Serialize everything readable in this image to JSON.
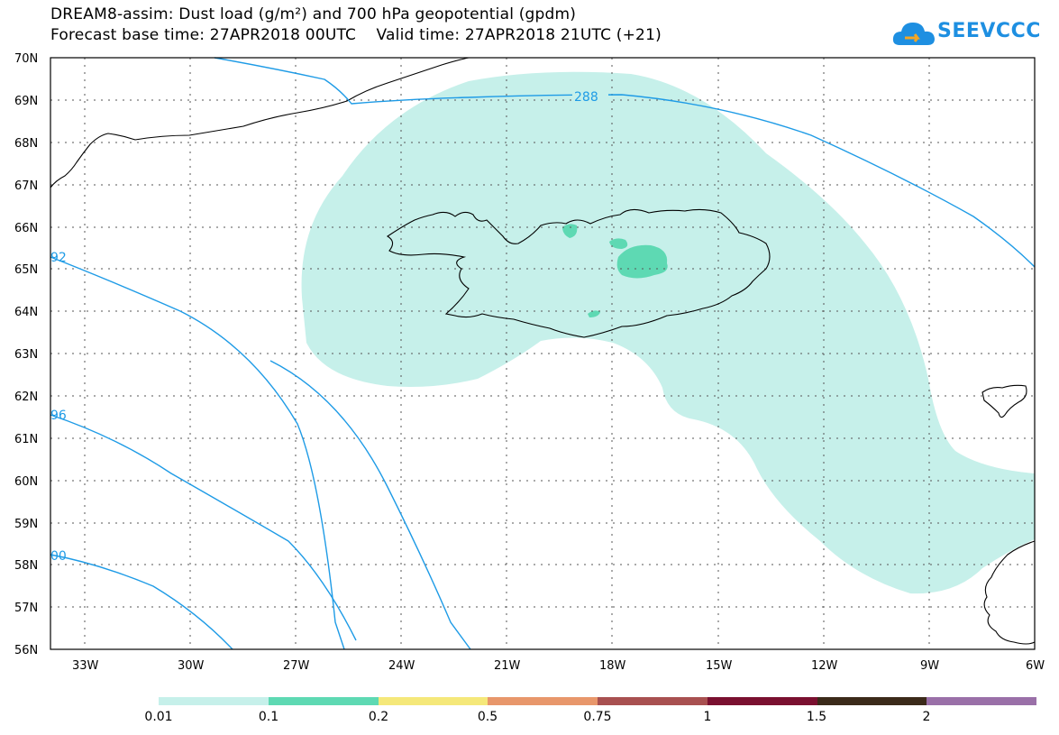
{
  "title_line1": "DREAM8-assim: Dust load (g/m²) and 700 hPa geopotential (gpdm)",
  "title_line2": "Forecast base time: 27APR2018 00UTC    Valid time: 27APR2018 21UTC (+21)",
  "logo_text": "SEEVCCC",
  "map": {
    "lon_labels": [
      "33W",
      "30W",
      "27W",
      "24W",
      "21W",
      "18W",
      "15W",
      "12W",
      "9W",
      "6W"
    ],
    "lat_labels": [
      "70N",
      "69N",
      "68N",
      "67N",
      "66N",
      "65N",
      "64N",
      "63N",
      "62N",
      "61N",
      "60N",
      "59N",
      "58N",
      "57N",
      "56N"
    ],
    "contour_labels": [
      "288",
      "92",
      "96",
      "00"
    ],
    "colors": {
      "contour": "#1e9be6",
      "dust_low": "#c6f0ea",
      "dust_mid": "#5ed9b3",
      "coast": "#000000"
    }
  },
  "colorbar": {
    "labels": [
      "0.01",
      "0.1",
      "0.2",
      "0.5",
      "0.75",
      "1",
      "1.5",
      "2"
    ],
    "colors": [
      "#c6f0ea",
      "#5ed9b3",
      "#f5e87a",
      "#e8976b",
      "#a85050",
      "#7a1030",
      "#3b2a1a",
      "#9a70a8"
    ]
  }
}
